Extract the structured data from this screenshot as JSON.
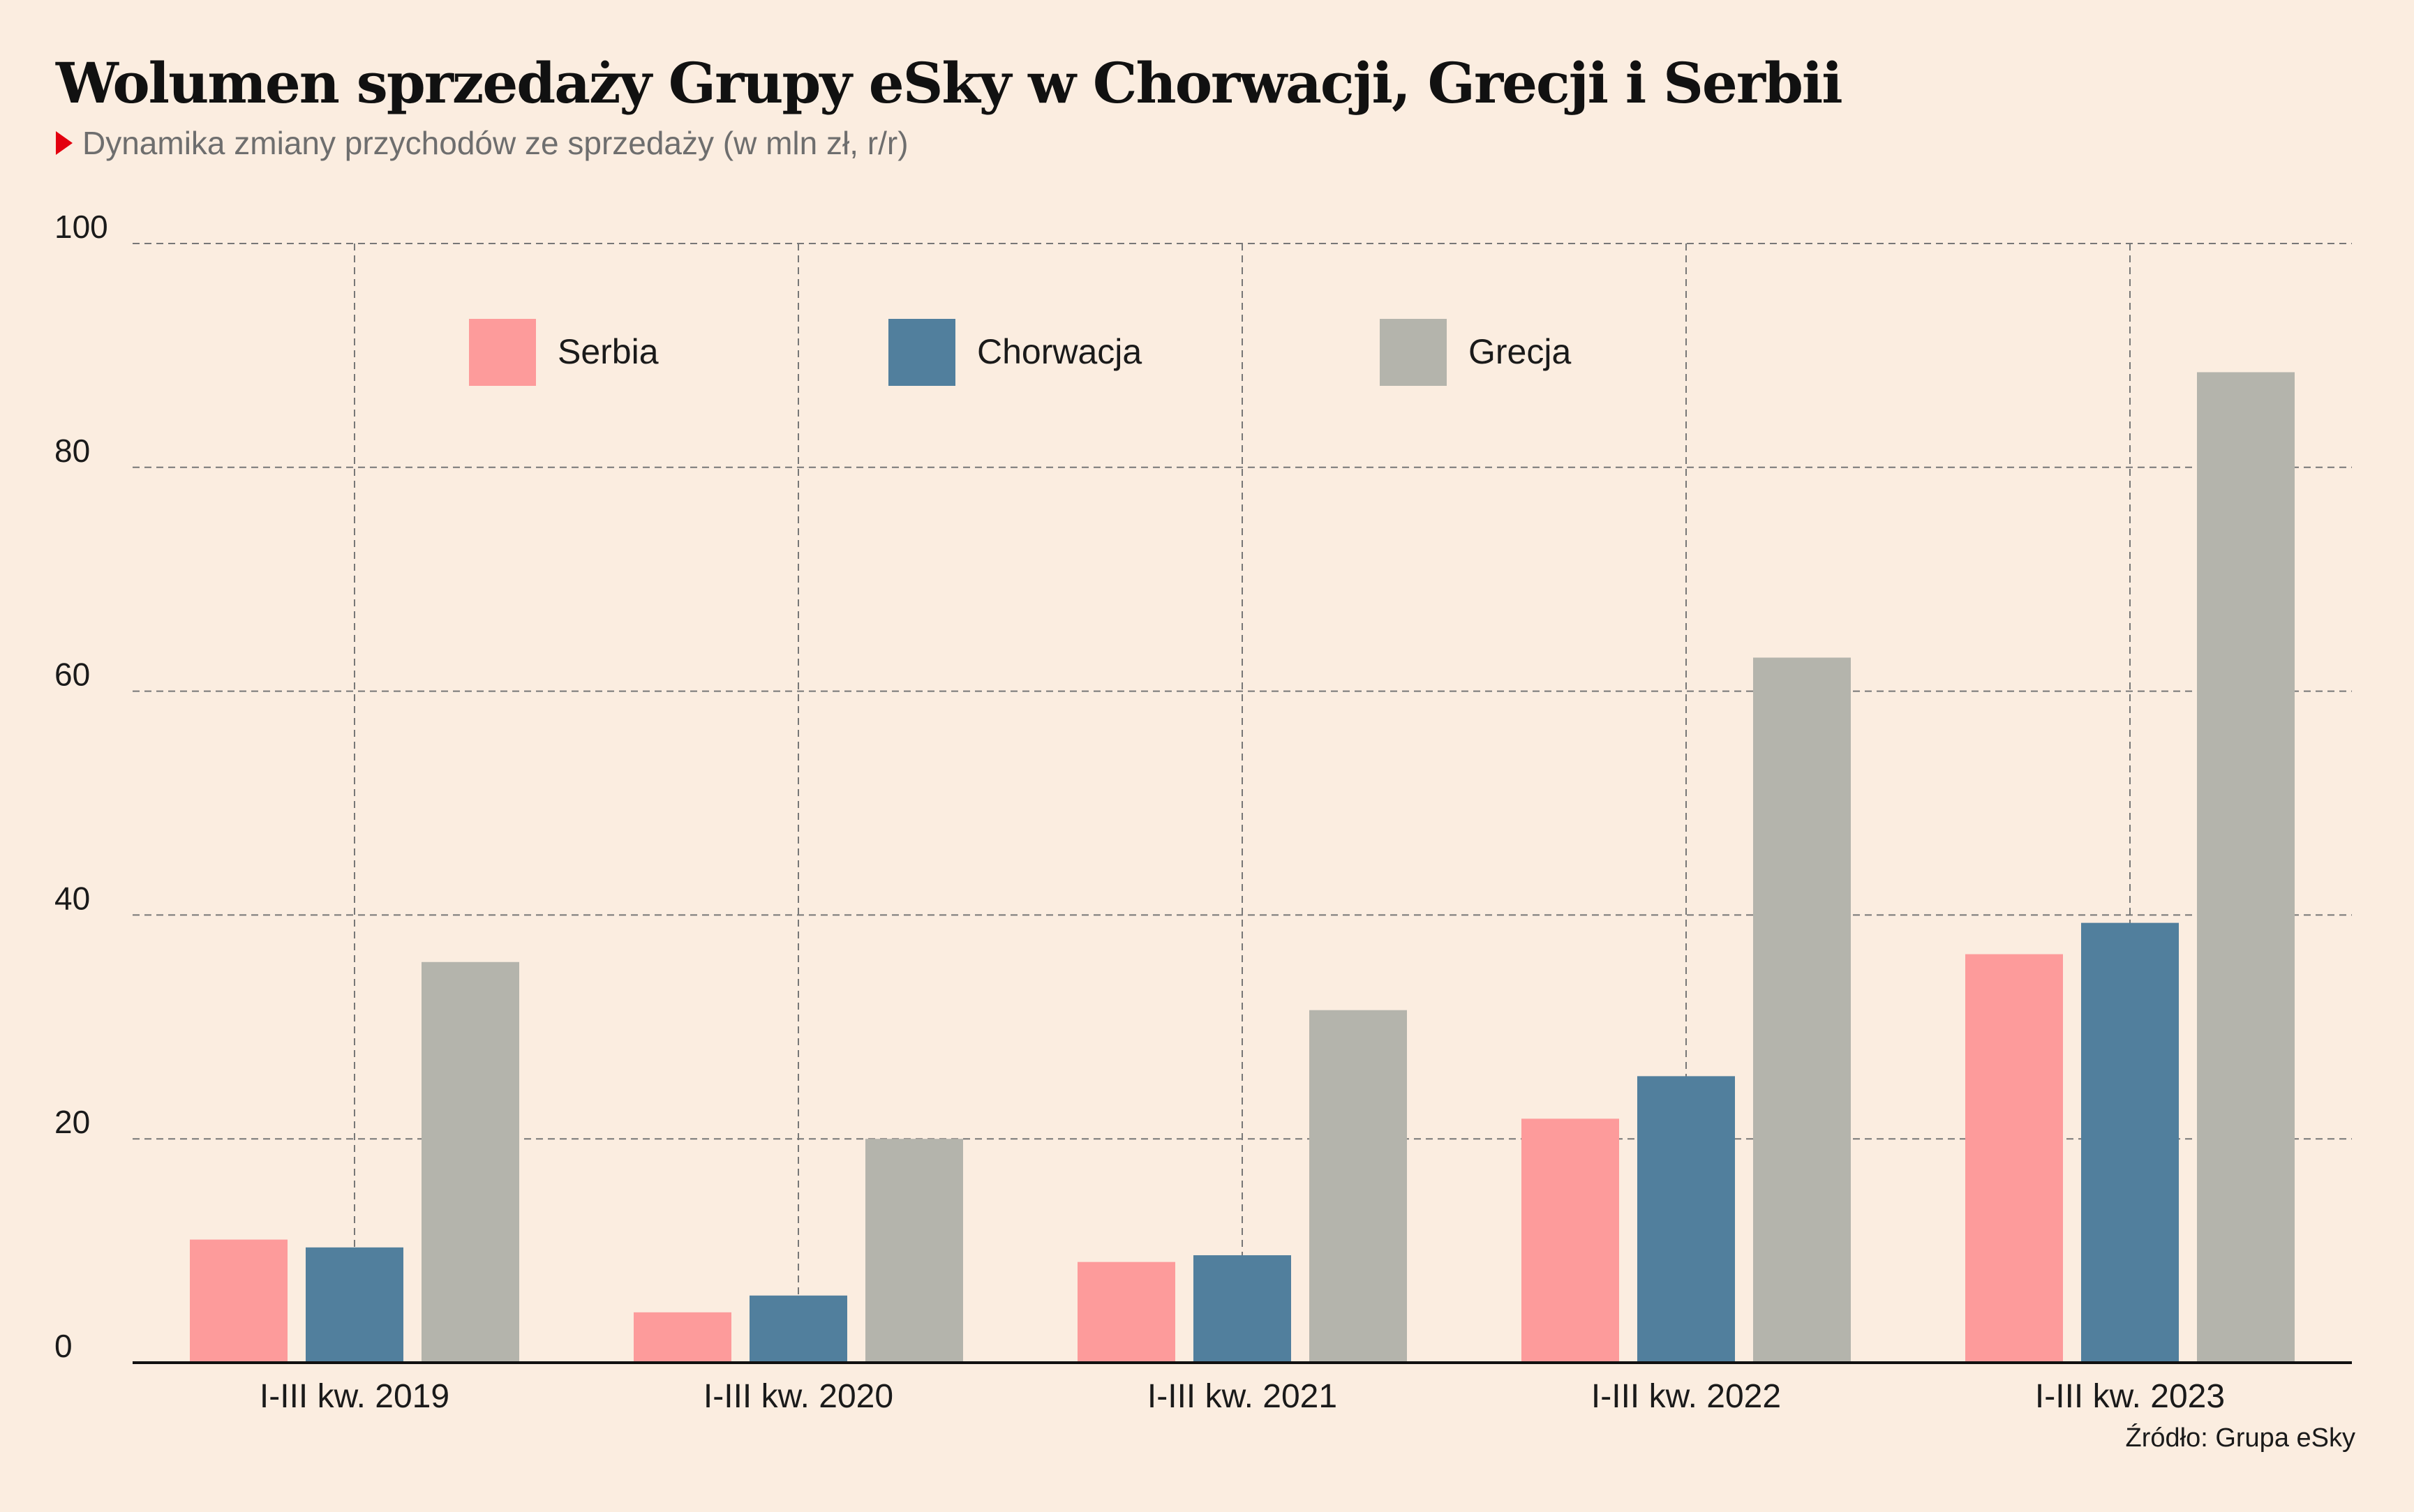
{
  "header": {
    "title": "Wolumen sprzedaży Grupy eSky w Chorwacji, Grecji i Serbii",
    "subtitle": "Dynamika zmiany przychodów ze sprzedaży (w mln zł, r/r)"
  },
  "source": "Źródło: Grupa eSky",
  "chart_data": {
    "type": "bar",
    "categories": [
      "I-III kw. 2019",
      "I-III kw. 2020",
      "I-III kw. 2021",
      "I-III kw. 2022",
      "I-III kw. 2023"
    ],
    "series": [
      {
        "name": "Serbia",
        "color": "#fd9b9b",
        "values": [
          11,
          4.5,
          9,
          21.8,
          36.5
        ]
      },
      {
        "name": "Chorwacja",
        "color": "#517f9d",
        "values": [
          10.3,
          6,
          9.6,
          25.6,
          39.3
        ]
      },
      {
        "name": "Grecja",
        "color": "#b4b4ac",
        "values": [
          35.8,
          20,
          31.5,
          63,
          88.5
        ]
      }
    ],
    "ylim": [
      0,
      100
    ],
    "yticks": [
      0,
      20,
      40,
      60,
      80,
      100
    ],
    "grid": true,
    "legend_position": "top"
  }
}
